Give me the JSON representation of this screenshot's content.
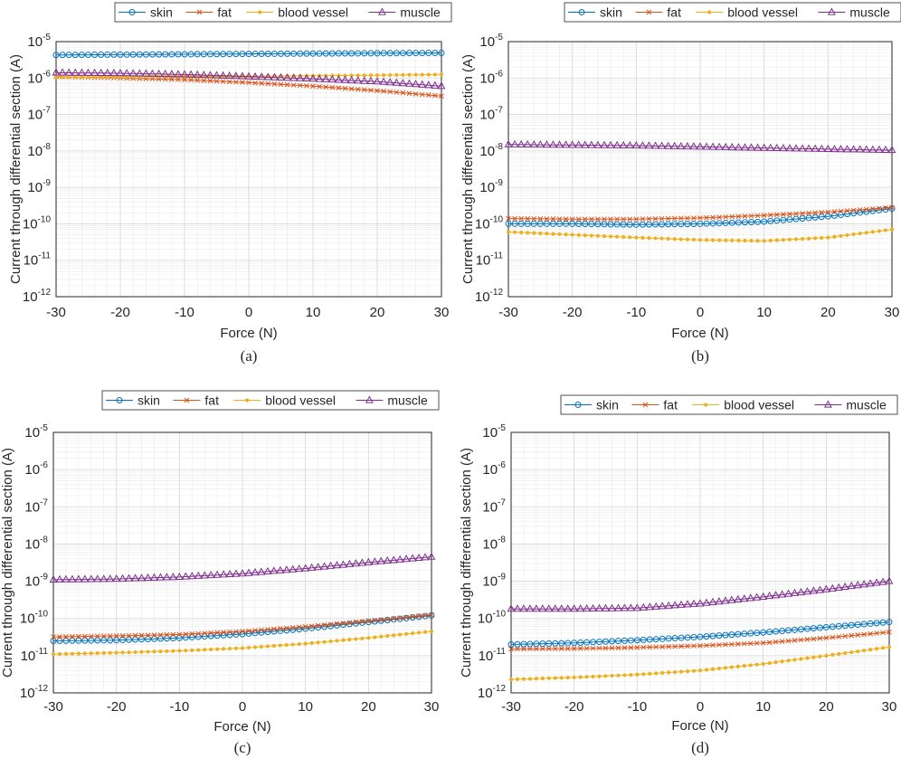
{
  "figure": {
    "panels": [
      {
        "caption": "(a)"
      },
      {
        "caption": "(b)"
      },
      {
        "caption": "(c)"
      },
      {
        "caption": "(d)"
      }
    ]
  },
  "chart_data": [
    {
      "type": "line",
      "panel": "(a)",
      "xlabel": "Force (N)",
      "ylabel": "Current through differential section (A)",
      "yscale": "log",
      "xlim": [
        -30,
        30
      ],
      "ylim_exp": [
        -12,
        -5
      ],
      "xticks": [
        -30,
        -20,
        -10,
        0,
        10,
        20,
        30
      ],
      "yticks_exp": [
        -12,
        -11,
        -10,
        -9,
        -8,
        -7,
        -6,
        -5
      ],
      "ytick_base": "10",
      "grid": true,
      "legend_position": "top",
      "series": [
        {
          "name": "skin",
          "color": "#0072BD",
          "marker": "circle",
          "x": [
            -30,
            -20,
            -10,
            0,
            10,
            20,
            30
          ],
          "values": [
            4.3e-06,
            4.4e-06,
            4.5e-06,
            4.6e-06,
            4.7e-06,
            4.8e-06,
            4.9e-06
          ]
        },
        {
          "name": "fat",
          "color": "#D95319",
          "marker": "x",
          "x": [
            -30,
            -20,
            -10,
            0,
            10,
            20,
            30
          ],
          "values": [
            1.1e-06,
            1e-06,
            9e-07,
            7.5e-07,
            6e-07,
            4.5e-07,
            3.2e-07
          ]
        },
        {
          "name": "blood vessel",
          "color": "#EDB120",
          "marker": "dot",
          "x": [
            -30,
            -20,
            -10,
            0,
            10,
            20,
            30
          ],
          "values": [
            1.05e-06,
            1.08e-06,
            1.1e-06,
            1.12e-06,
            1.15e-06,
            1.2e-06,
            1.25e-06
          ]
        },
        {
          "name": "muscle",
          "color": "#7E2F8E",
          "marker": "triangle",
          "x": [
            -30,
            -20,
            -10,
            0,
            10,
            20,
            30
          ],
          "values": [
            1.4e-06,
            1.35e-06,
            1.25e-06,
            1.1e-06,
            9.5e-07,
            8e-07,
            6e-07
          ]
        }
      ]
    },
    {
      "type": "line",
      "panel": "(b)",
      "xlabel": "Force (N)",
      "ylabel": "Current through differential section (A)",
      "yscale": "log",
      "xlim": [
        -30,
        30
      ],
      "ylim_exp": [
        -12,
        -5
      ],
      "xticks": [
        -30,
        -20,
        -10,
        0,
        10,
        20,
        30
      ],
      "yticks_exp": [
        -12,
        -11,
        -10,
        -9,
        -8,
        -7,
        -6,
        -5
      ],
      "ytick_base": "10",
      "grid": true,
      "legend_position": "top",
      "series": [
        {
          "name": "skin",
          "color": "#0072BD",
          "marker": "circle",
          "x": [
            -30,
            -20,
            -10,
            0,
            10,
            20,
            30
          ],
          "values": [
            1e-10,
            1e-10,
            9.5e-11,
            1e-10,
            1.15e-10,
            1.6e-10,
            2.6e-10
          ]
        },
        {
          "name": "fat",
          "color": "#D95319",
          "marker": "x",
          "x": [
            -30,
            -20,
            -10,
            0,
            10,
            20,
            30
          ],
          "values": [
            1.4e-10,
            1.35e-10,
            1.35e-10,
            1.45e-10,
            1.7e-10,
            2.1e-10,
            2.8e-10
          ]
        },
        {
          "name": "blood vessel",
          "color": "#EDB120",
          "marker": "dot",
          "x": [
            -30,
            -20,
            -10,
            0,
            10,
            20,
            30
          ],
          "values": [
            6e-11,
            5e-11,
            4.2e-11,
            3.6e-11,
            3.4e-11,
            4.2e-11,
            7e-11
          ]
        },
        {
          "name": "muscle",
          "color": "#7E2F8E",
          "marker": "triangle",
          "x": [
            -30,
            -20,
            -10,
            0,
            10,
            20,
            30
          ],
          "values": [
            1.5e-08,
            1.45e-08,
            1.4e-08,
            1.3e-08,
            1.2e-08,
            1.12e-08,
            1.05e-08
          ]
        }
      ]
    },
    {
      "type": "line",
      "panel": "(c)",
      "xlabel": "Force (N)",
      "ylabel": "Current through differential section (A)",
      "yscale": "log",
      "xlim": [
        -30,
        30
      ],
      "ylim_exp": [
        -12,
        -5
      ],
      "xticks": [
        -30,
        -20,
        -10,
        0,
        10,
        20,
        30
      ],
      "yticks_exp": [
        -12,
        -11,
        -10,
        -9,
        -8,
        -7,
        -6,
        -5
      ],
      "ytick_base": "10",
      "grid": true,
      "legend_position": "top",
      "series": [
        {
          "name": "skin",
          "color": "#0072BD",
          "marker": "circle",
          "x": [
            -30,
            -20,
            -10,
            0,
            10,
            20,
            30
          ],
          "values": [
            2.5e-11,
            2.6e-11,
            3e-11,
            3.8e-11,
            5.3e-11,
            8e-11,
            1.2e-10
          ]
        },
        {
          "name": "fat",
          "color": "#D95319",
          "marker": "x",
          "x": [
            -30,
            -20,
            -10,
            0,
            10,
            20,
            30
          ],
          "values": [
            3.2e-11,
            3.4e-11,
            3.7e-11,
            4.5e-11,
            6e-11,
            8.5e-11,
            1.25e-10
          ]
        },
        {
          "name": "blood vessel",
          "color": "#EDB120",
          "marker": "dot",
          "x": [
            -30,
            -20,
            -10,
            0,
            10,
            20,
            30
          ],
          "values": [
            1.1e-11,
            1.2e-11,
            1.35e-11,
            1.6e-11,
            2.1e-11,
            3e-11,
            4.5e-11
          ]
        },
        {
          "name": "muscle",
          "color": "#7E2F8E",
          "marker": "triangle",
          "x": [
            -30,
            -20,
            -10,
            0,
            10,
            20,
            30
          ],
          "values": [
            1.1e-09,
            1.15e-09,
            1.3e-09,
            1.6e-09,
            2.2e-09,
            3.2e-09,
            4.5e-09
          ]
        }
      ]
    },
    {
      "type": "line",
      "panel": "(d)",
      "xlabel": "Force (N)",
      "ylabel": "Current through differential section (A)",
      "yscale": "log",
      "xlim": [
        -30,
        30
      ],
      "ylim_exp": [
        -12,
        -5
      ],
      "xticks": [
        -30,
        -20,
        -10,
        0,
        10,
        20,
        30
      ],
      "yticks_exp": [
        -12,
        -11,
        -10,
        -9,
        -8,
        -7,
        -6,
        -5
      ],
      "ytick_base": "10",
      "grid": true,
      "legend_position": "top",
      "series": [
        {
          "name": "skin",
          "color": "#0072BD",
          "marker": "circle",
          "x": [
            -30,
            -20,
            -10,
            0,
            10,
            20,
            30
          ],
          "values": [
            2e-11,
            2.2e-11,
            2.6e-11,
            3.2e-11,
            4.2e-11,
            5.8e-11,
            8e-11
          ]
        },
        {
          "name": "fat",
          "color": "#D95319",
          "marker": "x",
          "x": [
            -30,
            -20,
            -10,
            0,
            10,
            20,
            30
          ],
          "values": [
            1.5e-11,
            1.55e-11,
            1.65e-11,
            1.85e-11,
            2.2e-11,
            3e-11,
            4.3e-11
          ]
        },
        {
          "name": "blood vessel",
          "color": "#EDB120",
          "marker": "dot",
          "x": [
            -30,
            -20,
            -10,
            0,
            10,
            20,
            30
          ],
          "values": [
            2.3e-12,
            2.6e-12,
            3.1e-12,
            4e-12,
            6e-12,
            1e-11,
            1.7e-11
          ]
        },
        {
          "name": "muscle",
          "color": "#7E2F8E",
          "marker": "triangle",
          "x": [
            -30,
            -20,
            -10,
            0,
            10,
            20,
            30
          ],
          "values": [
            1.8e-10,
            1.8e-10,
            1.9e-10,
            2.5e-10,
            3.8e-10,
            6e-10,
            1e-09
          ]
        }
      ]
    }
  ]
}
